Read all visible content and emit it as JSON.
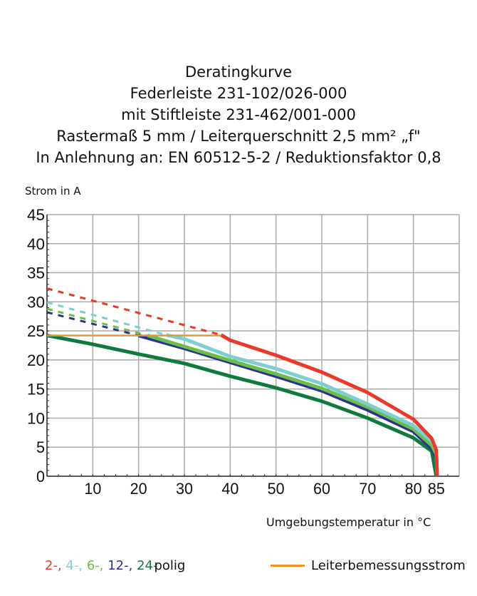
{
  "chart_data": {
    "type": "line",
    "title_lines": [
      "Deratingkurve",
      "Federleiste 231-102/026-000",
      "mit Stiftleiste 231-462/001-000",
      "Rastermaß 5 mm / Leiterquerschnitt 2,5 mm² „f\"",
      "In Anlehnung an: EN 60512-5-2 / Reduktionsfaktor 0,8"
    ],
    "ylabel": "Strom in A",
    "xlabel": "Umgebungstemperatur in °C",
    "xlim": [
      0,
      90
    ],
    "ylim": [
      0,
      45
    ],
    "x_ticks": [
      10,
      20,
      30,
      40,
      50,
      60,
      70,
      80,
      85
    ],
    "y_ticks": [
      0,
      5,
      10,
      15,
      20,
      25,
      30,
      35,
      40,
      45
    ],
    "grid": true,
    "legend": {
      "poles": [
        {
          "text": "2-,",
          "color": "#e8392a"
        },
        {
          "text": "4-,",
          "color": "#7dcfcf"
        },
        {
          "text": "6-,",
          "color": "#6abf4b"
        },
        {
          "text": "12-,",
          "color": "#2e3192"
        },
        {
          "text": "24-",
          "color": "#0f7a3c"
        }
      ],
      "poles_suffix": "polig",
      "rated_current_label": "Leiterbemessungsstrom",
      "rated_current_color": "#f39322",
      "placement": "bottom"
    },
    "series": [
      {
        "color": "#e8392a",
        "dashed": [
          [
            0,
            32.3
          ],
          [
            38,
            24.3
          ]
        ],
        "solid": [
          [
            38,
            24.3
          ],
          [
            40,
            23.4
          ],
          [
            50,
            20.8
          ],
          [
            60,
            17.9
          ],
          [
            70,
            14.4
          ],
          [
            80,
            9.8
          ],
          [
            84,
            6.5
          ],
          [
            85,
            4.5
          ],
          [
            85.2,
            0
          ]
        ]
      },
      {
        "color": "#7dcfcf",
        "dashed": [
          [
            0,
            29.9
          ],
          [
            26,
            24.3
          ]
        ],
        "solid": [
          [
            26,
            24.3
          ],
          [
            30,
            23.6
          ],
          [
            40,
            20.6
          ],
          [
            50,
            18.5
          ],
          [
            60,
            15.9
          ],
          [
            70,
            12.4
          ],
          [
            80,
            8.7
          ],
          [
            84,
            6.0
          ],
          [
            85,
            4.5
          ],
          [
            85.2,
            0
          ]
        ]
      },
      {
        "color": "#6abf4b",
        "dashed": [
          [
            0,
            28.8
          ],
          [
            22,
            24.2
          ]
        ],
        "solid": [
          [
            22,
            24.2
          ],
          [
            30,
            22.3
          ],
          [
            40,
            19.9
          ],
          [
            50,
            17.6
          ],
          [
            60,
            15.1
          ],
          [
            70,
            11.9
          ],
          [
            80,
            8.1
          ],
          [
            84,
            5.3
          ],
          [
            85,
            3.8
          ],
          [
            85.2,
            0
          ]
        ]
      },
      {
        "color": "#2e3192",
        "dashed": [
          [
            0,
            28.2
          ],
          [
            20,
            24.2
          ]
        ],
        "solid": [
          [
            20,
            24.2
          ],
          [
            30,
            22.0
          ],
          [
            40,
            19.6
          ],
          [
            50,
            17.2
          ],
          [
            60,
            14.7
          ],
          [
            70,
            11.4
          ],
          [
            80,
            7.7
          ],
          [
            84,
            4.8
          ],
          [
            85,
            3.3
          ],
          [
            85.2,
            0
          ]
        ]
      },
      {
        "color": "#0f7a3c",
        "dashed": [],
        "solid": [
          [
            0,
            24.2
          ],
          [
            10,
            22.7
          ],
          [
            20,
            21.0
          ],
          [
            30,
            19.4
          ],
          [
            40,
            17.2
          ],
          [
            50,
            15.2
          ],
          [
            60,
            12.9
          ],
          [
            70,
            10.0
          ],
          [
            80,
            6.6
          ],
          [
            84,
            4.3
          ],
          [
            85,
            0
          ]
        ]
      },
      {
        "color": "#f39322",
        "dashed": [],
        "solid": [
          [
            0,
            24.2
          ],
          [
            38,
            24.2
          ]
        ]
      }
    ]
  }
}
